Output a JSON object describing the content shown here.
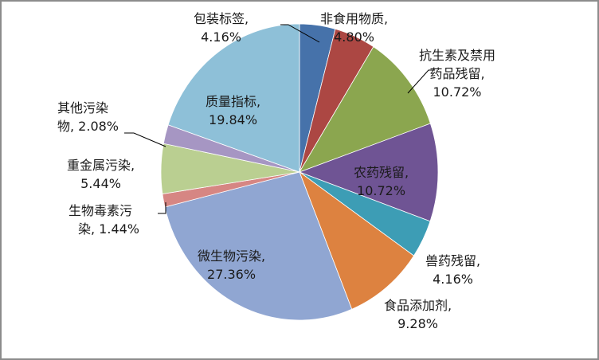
{
  "chart_data": {
    "type": "pie",
    "title": "",
    "label_format": "{category}, {value}%",
    "start_angle": "12 o'clock, clockwise",
    "legend": "none (data labels on/around slices)",
    "categories": [
      "包装标签",
      "非食用物质",
      "抗生素及禁用药品残留",
      "农药残留",
      "兽药残留",
      "食品添加剂",
      "微生物污染",
      "生物毒素污染",
      "重金属污染",
      "其他污染物",
      "质量指标"
    ],
    "values": [
      4.16,
      4.8,
      10.72,
      10.72,
      4.16,
      9.28,
      27.36,
      1.44,
      5.44,
      2.08,
      19.84
    ],
    "colors": [
      "#4672AA",
      "#AC4743",
      "#8BA64F",
      "#6F5494",
      "#3D9DB5",
      "#DD8240",
      "#90A6D2",
      "#D68683",
      "#BACF91",
      "#A696C3",
      "#8EC0D8"
    ],
    "unit": "%"
  },
  "labels": [
    {
      "line1": "包装标签,",
      "line2": "4.16%"
    },
    {
      "line1": "非食用物质,",
      "line2": "4.80%"
    },
    {
      "line1": "抗生素及禁用",
      "line2": "药品残留,",
      "line3": "10.72%"
    },
    {
      "line1": "农药残留,",
      "line2": "10.72%"
    },
    {
      "line1": "兽药残留,",
      "line2": "4.16%"
    },
    {
      "line1": "食品添加剂,",
      "line2": "9.28%"
    },
    {
      "line1": "微生物污染,",
      "line2": "27.36%"
    },
    {
      "line1": "生物毒素污",
      "line2": "染, 1.44%"
    },
    {
      "line1": "重金属污染,",
      "line2": "5.44%"
    },
    {
      "line1": "其他污染",
      "line2": "物, 2.08%"
    },
    {
      "line1": "质量指标,",
      "line2": "19.84%"
    }
  ]
}
